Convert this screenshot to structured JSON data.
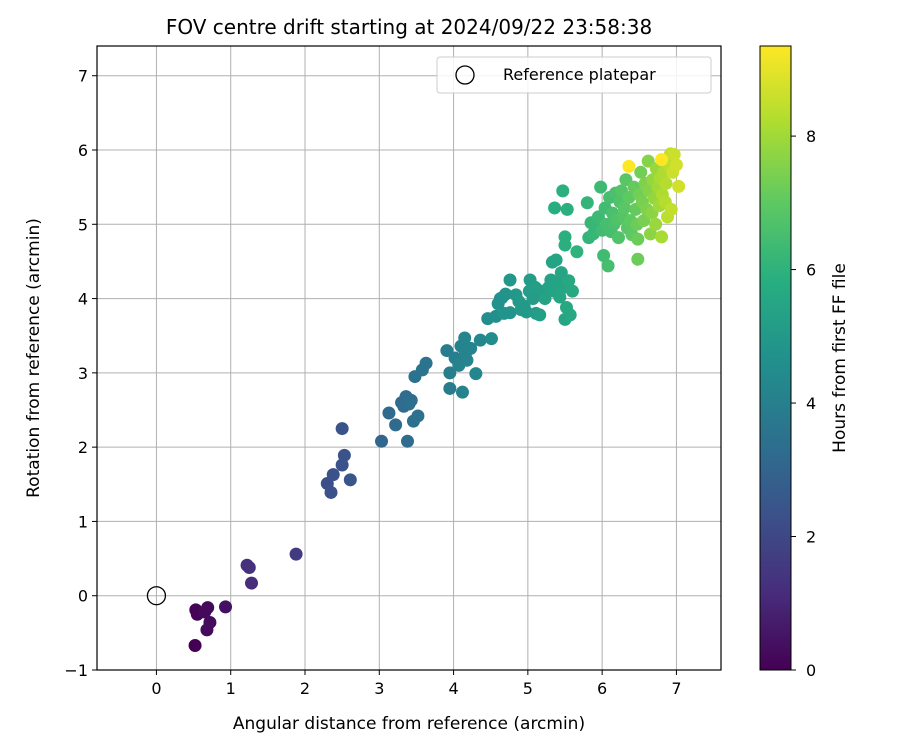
{
  "chart_data": {
    "type": "scatter",
    "title": "FOV centre drift starting at 2024/09/22 23:58:38",
    "xlabel": "Angular distance from reference (arcmin)",
    "ylabel": "Rotation from reference (arcmin)",
    "xlim": [
      -0.8,
      7.6
    ],
    "ylim": [
      -1.0,
      7.4
    ],
    "xticks": [
      0,
      1,
      2,
      3,
      4,
      5,
      6,
      7
    ],
    "yticks": [
      -1,
      0,
      1,
      2,
      3,
      4,
      5,
      6,
      7
    ],
    "grid": true,
    "legend": {
      "position": "top-right",
      "entries": [
        "Reference platepar"
      ]
    },
    "reference_point": {
      "x": 0,
      "y": 0
    },
    "colorbar": {
      "label": "Hours from first FF file",
      "min": 0,
      "max": 9.35,
      "ticks": [
        0,
        2,
        4,
        6,
        8
      ],
      "colormap": "viridis"
    },
    "points": [
      {
        "x": 0.52,
        "y": -0.67,
        "h": 0.0
      },
      {
        "x": 0.53,
        "y": -0.19,
        "h": 0.1
      },
      {
        "x": 0.55,
        "y": -0.25,
        "h": 0.1
      },
      {
        "x": 0.65,
        "y": -0.22,
        "h": 0.2
      },
      {
        "x": 0.69,
        "y": -0.16,
        "h": 0.2
      },
      {
        "x": 0.68,
        "y": -0.46,
        "h": 0.3
      },
      {
        "x": 0.72,
        "y": -0.36,
        "h": 0.3
      },
      {
        "x": 0.93,
        "y": -0.15,
        "h": 0.4
      },
      {
        "x": 1.22,
        "y": 0.41,
        "h": 1.3
      },
      {
        "x": 1.25,
        "y": 0.38,
        "h": 1.3
      },
      {
        "x": 1.28,
        "y": 0.17,
        "h": 1.2
      },
      {
        "x": 1.88,
        "y": 0.56,
        "h": 1.6
      },
      {
        "x": 2.3,
        "y": 1.51,
        "h": 2.2
      },
      {
        "x": 2.35,
        "y": 1.39,
        "h": 2.3
      },
      {
        "x": 2.38,
        "y": 1.63,
        "h": 2.3
      },
      {
        "x": 2.5,
        "y": 1.76,
        "h": 2.4
      },
      {
        "x": 2.53,
        "y": 1.89,
        "h": 2.4
      },
      {
        "x": 2.5,
        "y": 2.25,
        "h": 2.4
      },
      {
        "x": 2.61,
        "y": 1.56,
        "h": 2.5
      },
      {
        "x": 3.03,
        "y": 2.08,
        "h": 3.1
      },
      {
        "x": 3.13,
        "y": 2.46,
        "h": 3.2
      },
      {
        "x": 3.22,
        "y": 2.3,
        "h": 3.2
      },
      {
        "x": 3.3,
        "y": 2.6,
        "h": 3.3
      },
      {
        "x": 3.33,
        "y": 2.55,
        "h": 3.3
      },
      {
        "x": 3.36,
        "y": 2.68,
        "h": 3.3
      },
      {
        "x": 3.4,
        "y": 2.58,
        "h": 3.4
      },
      {
        "x": 3.43,
        "y": 2.63,
        "h": 3.4
      },
      {
        "x": 3.38,
        "y": 2.08,
        "h": 3.3
      },
      {
        "x": 3.46,
        "y": 2.35,
        "h": 3.4
      },
      {
        "x": 3.52,
        "y": 2.42,
        "h": 3.5
      },
      {
        "x": 3.48,
        "y": 2.95,
        "h": 3.5
      },
      {
        "x": 3.58,
        "y": 3.04,
        "h": 3.6
      },
      {
        "x": 3.63,
        "y": 3.13,
        "h": 3.6
      },
      {
        "x": 3.91,
        "y": 3.3,
        "h": 3.9
      },
      {
        "x": 3.95,
        "y": 3.0,
        "h": 4.0
      },
      {
        "x": 3.95,
        "y": 2.79,
        "h": 3.9
      },
      {
        "x": 4.02,
        "y": 3.2,
        "h": 4.0
      },
      {
        "x": 4.07,
        "y": 3.1,
        "h": 4.1
      },
      {
        "x": 4.1,
        "y": 3.36,
        "h": 4.1
      },
      {
        "x": 4.12,
        "y": 2.74,
        "h": 4.1
      },
      {
        "x": 4.16,
        "y": 3.26,
        "h": 4.2
      },
      {
        "x": 4.18,
        "y": 3.17,
        "h": 4.2
      },
      {
        "x": 4.15,
        "y": 3.47,
        "h": 4.2
      },
      {
        "x": 4.23,
        "y": 3.33,
        "h": 4.2
      },
      {
        "x": 4.3,
        "y": 2.99,
        "h": 4.3
      },
      {
        "x": 4.36,
        "y": 3.44,
        "h": 4.3
      },
      {
        "x": 4.51,
        "y": 3.46,
        "h": 4.5
      },
      {
        "x": 4.46,
        "y": 3.73,
        "h": 4.6
      },
      {
        "x": 4.57,
        "y": 3.76,
        "h": 4.6
      },
      {
        "x": 4.6,
        "y": 3.93,
        "h": 4.7
      },
      {
        "x": 4.65,
        "y": 4.01,
        "h": 4.7
      },
      {
        "x": 4.63,
        "y": 4.0,
        "h": 4.7
      },
      {
        "x": 4.7,
        "y": 4.06,
        "h": 4.8
      },
      {
        "x": 4.68,
        "y": 3.8,
        "h": 4.8
      },
      {
        "x": 4.76,
        "y": 3.81,
        "h": 4.8
      },
      {
        "x": 4.76,
        "y": 4.25,
        "h": 4.9
      },
      {
        "x": 4.84,
        "y": 4.05,
        "h": 4.9
      },
      {
        "x": 4.88,
        "y": 3.96,
        "h": 5.0
      },
      {
        "x": 4.91,
        "y": 3.85,
        "h": 5.0
      },
      {
        "x": 4.95,
        "y": 3.9,
        "h": 5.0
      },
      {
        "x": 4.98,
        "y": 3.82,
        "h": 5.0
      },
      {
        "x": 5.02,
        "y": 4.1,
        "h": 5.1
      },
      {
        "x": 5.03,
        "y": 4.25,
        "h": 5.1
      },
      {
        "x": 5.07,
        "y": 4.0,
        "h": 5.1
      },
      {
        "x": 5.1,
        "y": 4.15,
        "h": 5.2
      },
      {
        "x": 5.11,
        "y": 3.8,
        "h": 5.1
      },
      {
        "x": 5.16,
        "y": 3.78,
        "h": 5.2
      },
      {
        "x": 5.2,
        "y": 4.1,
        "h": 5.2
      },
      {
        "x": 5.23,
        "y": 4.0,
        "h": 5.3
      },
      {
        "x": 5.28,
        "y": 4.15,
        "h": 5.3
      },
      {
        "x": 5.31,
        "y": 4.25,
        "h": 5.3
      },
      {
        "x": 5.33,
        "y": 4.49,
        "h": 5.4
      },
      {
        "x": 5.35,
        "y": 4.1,
        "h": 5.4
      },
      {
        "x": 5.38,
        "y": 4.52,
        "h": 5.4
      },
      {
        "x": 5.4,
        "y": 4.21,
        "h": 5.4
      },
      {
        "x": 5.43,
        "y": 4.02,
        "h": 5.5
      },
      {
        "x": 5.45,
        "y": 4.35,
        "h": 5.5
      },
      {
        "x": 5.48,
        "y": 4.15,
        "h": 5.5
      },
      {
        "x": 5.5,
        "y": 3.72,
        "h": 5.5
      },
      {
        "x": 5.52,
        "y": 3.88,
        "h": 5.6
      },
      {
        "x": 5.55,
        "y": 4.24,
        "h": 5.6
      },
      {
        "x": 5.57,
        "y": 3.78,
        "h": 5.6
      },
      {
        "x": 5.6,
        "y": 4.1,
        "h": 5.6
      },
      {
        "x": 5.36,
        "y": 5.22,
        "h": 5.8
      },
      {
        "x": 5.47,
        "y": 5.45,
        "h": 5.9
      },
      {
        "x": 5.5,
        "y": 4.83,
        "h": 5.9
      },
      {
        "x": 5.5,
        "y": 4.72,
        "h": 5.9
      },
      {
        "x": 5.53,
        "y": 5.2,
        "h": 5.9
      },
      {
        "x": 5.66,
        "y": 4.63,
        "h": 6.0
      },
      {
        "x": 5.8,
        "y": 5.29,
        "h": 6.1
      },
      {
        "x": 5.82,
        "y": 4.82,
        "h": 6.1
      },
      {
        "x": 5.85,
        "y": 5.02,
        "h": 6.2
      },
      {
        "x": 5.88,
        "y": 4.87,
        "h": 6.2
      },
      {
        "x": 5.91,
        "y": 4.95,
        "h": 6.2
      },
      {
        "x": 5.95,
        "y": 5.1,
        "h": 6.3
      },
      {
        "x": 5.98,
        "y": 5.5,
        "h": 6.3
      },
      {
        "x": 6.0,
        "y": 4.92,
        "h": 6.4
      },
      {
        "x": 6.02,
        "y": 4.58,
        "h": 6.4
      },
      {
        "x": 6.04,
        "y": 5.22,
        "h": 6.4
      },
      {
        "x": 6.06,
        "y": 5.0,
        "h": 6.5
      },
      {
        "x": 6.08,
        "y": 4.44,
        "h": 6.5
      },
      {
        "x": 6.1,
        "y": 5.36,
        "h": 6.5
      },
      {
        "x": 6.12,
        "y": 4.9,
        "h": 6.5
      },
      {
        "x": 6.14,
        "y": 5.15,
        "h": 6.6
      },
      {
        "x": 6.16,
        "y": 5.0,
        "h": 6.6
      },
      {
        "x": 6.18,
        "y": 5.42,
        "h": 6.6
      },
      {
        "x": 6.2,
        "y": 5.06,
        "h": 6.7
      },
      {
        "x": 6.22,
        "y": 4.82,
        "h": 6.7
      },
      {
        "x": 6.24,
        "y": 5.3,
        "h": 6.7
      },
      {
        "x": 6.26,
        "y": 5.45,
        "h": 6.8
      },
      {
        "x": 6.28,
        "y": 5.1,
        "h": 6.8
      },
      {
        "x": 6.3,
        "y": 5.22,
        "h": 6.9
      },
      {
        "x": 6.32,
        "y": 5.6,
        "h": 6.9
      },
      {
        "x": 6.34,
        "y": 4.95,
        "h": 6.9
      },
      {
        "x": 6.36,
        "y": 5.36,
        "h": 7.0
      },
      {
        "x": 6.38,
        "y": 5.05,
        "h": 7.0
      },
      {
        "x": 6.4,
        "y": 4.86,
        "h": 7.0
      },
      {
        "x": 6.43,
        "y": 5.5,
        "h": 7.1
      },
      {
        "x": 6.45,
        "y": 5.2,
        "h": 7.1
      },
      {
        "x": 6.47,
        "y": 5.0,
        "h": 7.2
      },
      {
        "x": 6.48,
        "y": 4.53,
        "h": 7.2
      },
      {
        "x": 6.48,
        "y": 4.8,
        "h": 7.2
      },
      {
        "x": 6.5,
        "y": 5.4,
        "h": 7.3
      },
      {
        "x": 6.52,
        "y": 5.7,
        "h": 7.3
      },
      {
        "x": 6.54,
        "y": 5.3,
        "h": 7.4
      },
      {
        "x": 6.56,
        "y": 5.05,
        "h": 7.4
      },
      {
        "x": 6.58,
        "y": 5.55,
        "h": 7.5
      },
      {
        "x": 6.6,
        "y": 5.2,
        "h": 7.5
      },
      {
        "x": 6.62,
        "y": 5.85,
        "h": 7.6
      },
      {
        "x": 6.63,
        "y": 5.45,
        "h": 7.6
      },
      {
        "x": 6.65,
        "y": 4.87,
        "h": 7.7
      },
      {
        "x": 6.67,
        "y": 5.15,
        "h": 7.7
      },
      {
        "x": 6.68,
        "y": 5.6,
        "h": 7.8
      },
      {
        "x": 6.7,
        "y": 5.35,
        "h": 7.8
      },
      {
        "x": 6.72,
        "y": 5.0,
        "h": 7.9
      },
      {
        "x": 6.73,
        "y": 5.75,
        "h": 7.9
      },
      {
        "x": 6.75,
        "y": 5.5,
        "h": 8.0
      },
      {
        "x": 6.77,
        "y": 5.25,
        "h": 8.0
      },
      {
        "x": 6.78,
        "y": 5.62,
        "h": 8.1
      },
      {
        "x": 6.8,
        "y": 4.83,
        "h": 8.1
      },
      {
        "x": 6.81,
        "y": 5.4,
        "h": 8.2
      },
      {
        "x": 6.83,
        "y": 5.7,
        "h": 8.2
      },
      {
        "x": 6.85,
        "y": 5.3,
        "h": 8.3
      },
      {
        "x": 6.86,
        "y": 5.55,
        "h": 8.3
      },
      {
        "x": 6.88,
        "y": 5.1,
        "h": 8.4
      },
      {
        "x": 6.9,
        "y": 5.8,
        "h": 8.4
      },
      {
        "x": 6.92,
        "y": 5.95,
        "h": 8.5
      },
      {
        "x": 6.93,
        "y": 5.2,
        "h": 8.5
      },
      {
        "x": 6.95,
        "y": 5.7,
        "h": 8.6
      },
      {
        "x": 6.97,
        "y": 5.94,
        "h": 8.6
      },
      {
        "x": 7.0,
        "y": 5.8,
        "h": 8.7
      },
      {
        "x": 7.03,
        "y": 5.51,
        "h": 8.7
      },
      {
        "x": 6.36,
        "y": 5.78,
        "h": 9.35
      },
      {
        "x": 6.8,
        "y": 5.87,
        "h": 9.35
      }
    ]
  }
}
